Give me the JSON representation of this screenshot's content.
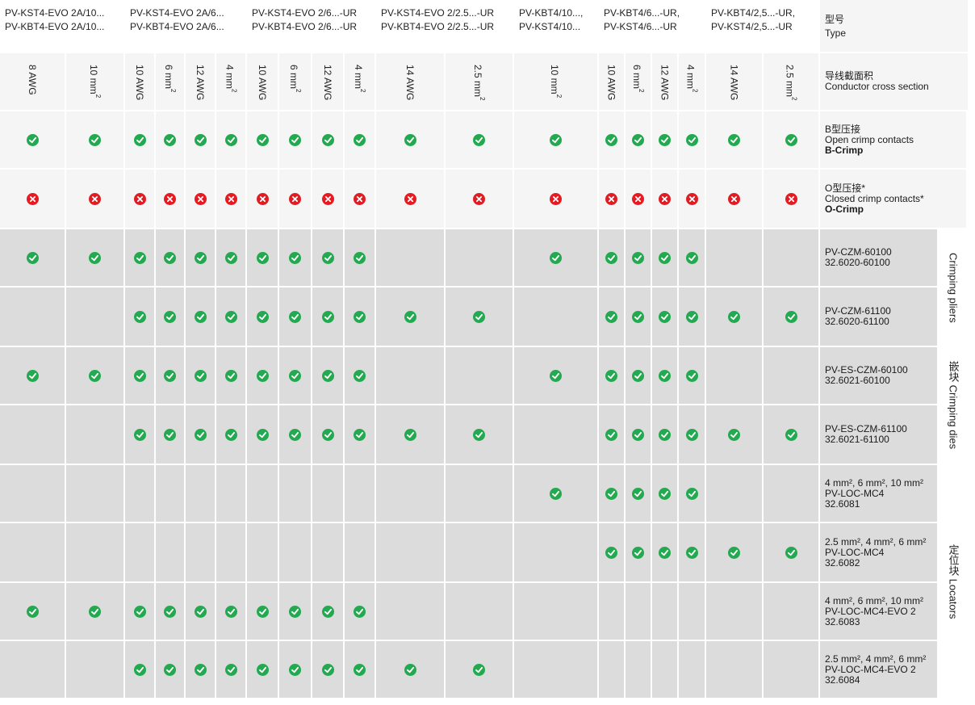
{
  "columns": [
    {
      "label": "8 AWG"
    },
    {
      "label": "10 mm²"
    },
    {
      "label": "10 AWG"
    },
    {
      "label": "6 mm²"
    },
    {
      "label": "12 AWG"
    },
    {
      "label": "4 mm²"
    },
    {
      "label": "10 AWG"
    },
    {
      "label": "6 mm²"
    },
    {
      "label": "12 AWG"
    },
    {
      "label": "4 mm²"
    },
    {
      "label": "14 AWG"
    },
    {
      "label": "2.5 mm²"
    },
    {
      "label": "10 mm²"
    },
    {
      "label": "10 AWG"
    },
    {
      "label": "6 mm²"
    },
    {
      "label": "12 AWG"
    },
    {
      "label": "4 mm²"
    },
    {
      "label": "14 AWG"
    },
    {
      "label": "2.5 mm²"
    }
  ],
  "type_groups": [
    {
      "line1": "PV-KST4-EVO 2A/10...",
      "line2": "PV-KBT4-EVO 2A/10..."
    },
    {
      "line1": "PV-KST4-EVO 2A/6...",
      "line2": "PV-KBT4-EVO 2A/6..."
    },
    {
      "line1": "PV-KST4-EVO 2/6...-UR",
      "line2": "PV-KBT4-EVO 2/6...-UR"
    },
    {
      "line1": "PV-KST4-EVO 2/2.5...-UR",
      "line2": "PV-KBT4-EVO 2/2.5...-UR"
    },
    {
      "line1": "PV-KBT4/10...,",
      "line2": "PV-KST4/10..."
    },
    {
      "line1": "PV-KBT4/6...-UR,",
      "line2": "PV-KST4/6...-UR"
    },
    {
      "line1": "PV-KBT4/2,5...-UR,",
      "line2": "PV-KST4/2,5...-UR"
    }
  ],
  "type_label": {
    "cn": "型号",
    "en": "Type"
  },
  "cross_label": {
    "cn": "导线截面积",
    "en": "Conductor cross section"
  },
  "rows": [
    {
      "lines": [
        "B型压接",
        "Open crimp contacts",
        "B-Crimp"
      ],
      "cells": "1111111111111111111"
    },
    {
      "lines": [
        "O型压接*",
        "Closed crimp contacts*",
        "O-Crimp"
      ],
      "cells": "xxxxxxxxxxxxxxxxxxx"
    },
    {
      "lines": [
        "PV-CZM-60100",
        "32.6020-60100"
      ],
      "cells": "1111111111001111100"
    },
    {
      "lines": [
        "PV-CZM-61100",
        "32.6020-61100"
      ],
      "cells": "0011111111110111111"
    },
    {
      "lines": [
        "PV-ES-CZM-60100",
        "32.6021-60100"
      ],
      "cells": "1111111111001111100"
    },
    {
      "lines": [
        "PV-ES-CZM-61100",
        "32.6021-61100"
      ],
      "cells": "0011111111110111111"
    },
    {
      "lines": [
        "4 mm², 6 mm², 10 mm²",
        "PV-LOC-MC4",
        "32.6081"
      ],
      "cells": "0000000000001111100"
    },
    {
      "lines": [
        "2.5 mm², 4 mm², 6 mm²",
        "PV-LOC-MC4",
        "32.6082"
      ],
      "cells": "0000000000000111111"
    },
    {
      "lines": [
        "4 mm², 6 mm², 10 mm²",
        "PV-LOC-MC4-EVO 2",
        "32.6083"
      ],
      "cells": "1111111111000000000"
    },
    {
      "lines": [
        "2.5 mm², 4 mm², 6 mm²",
        "PV-LOC-MC4-EVO 2",
        "32.6084"
      ],
      "cells": "0011111111110000000"
    }
  ],
  "groups": [
    {
      "label": "Crimping pliers"
    },
    {
      "label": "嵌块 Crimping dies"
    },
    {
      "label": "定位块 Locators"
    }
  ],
  "colors": {
    "ok": "#23a94f",
    "no": "#e31b23",
    "gray": "#dcdcdc",
    "light": "#f5f5f5"
  }
}
